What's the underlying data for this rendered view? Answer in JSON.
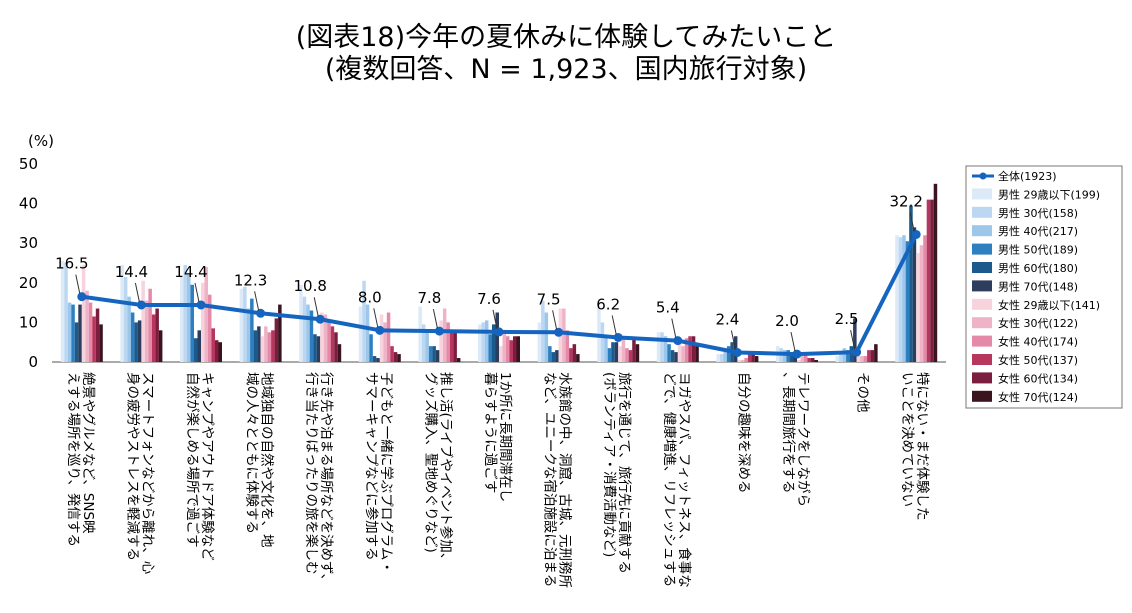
{
  "title_line1": "(図表18)今年の夏休みに体験してみたいこと",
  "title_line2": "(複数回答、N = 1,923、国内旅行対象)",
  "chart_data": {
    "type": "bar",
    "unit_label": "(%)",
    "ylim": [
      0,
      50
    ],
    "yticks": [
      "0",
      "10",
      "20",
      "30",
      "40",
      "50"
    ],
    "categories": [
      "絶景やグルメなど、SNS映えする場所を巡り、発信する",
      "スマートフォンなどから離れ、心身の疲労やストレスを軽減する",
      "キャンプやアウトドア体験など自然が楽しめる場所で過ごす",
      "地域独自の自然や文化を、地域の人々とともに体験する",
      "行き先や泊まる場所などを決めず、行き当たりばったりの旅を楽しむ",
      "子どもと一緒に学ぶプログラム・サマーキャンプなどに参加する",
      "推し活(ライブやイベント参加、グッズ購入、聖地めぐりなど)",
      "1か所に長期間滞在し暮らすように過ごす",
      "水族館の中、洞窟、古城、元刑務所など、ユニークな宿泊施設に泊まる",
      "旅行を通じて、旅行先に貢献する(ボランティア・消費活動など)",
      "ヨガやスパ、フィットネス、食事などで、健康増進、リフレッシュする",
      "自分の趣味を深める",
      "テレワークをしながら、長期間旅行をする",
      "その他",
      "特にない・まだ体験したいことを決めていない"
    ],
    "line_series": {
      "name": "全体(1923)",
      "color": "#1565c0",
      "values": [
        16.5,
        14.4,
        14.4,
        12.3,
        10.8,
        8.0,
        7.8,
        7.6,
        7.5,
        6.2,
        5.4,
        2.4,
        2.0,
        2.5,
        32.2
      ],
      "labels": [
        "16.5",
        "14.4",
        "14.4",
        "12.3",
        "10.8",
        "8.0",
        "7.8",
        "7.6",
        "7.5",
        "6.2",
        "5.4",
        "2.4",
        "2.0",
        "2.5",
        "32.2"
      ]
    },
    "series": [
      {
        "name": "男性 29歳以下(199)",
        "color": "#dce9f7",
        "values": [
          25.5,
          24.5,
          21.5,
          18.5,
          19.5,
          14,
          14,
          9.5,
          10,
          14,
          7.5,
          2,
          4,
          1.5,
          32
        ]
      },
      {
        "name": "男性 30代(158)",
        "color": "#bcd7f1",
        "values": [
          25,
          21.5,
          24.5,
          19,
          16.5,
          20.5,
          9.5,
          10,
          15.5,
          10,
          7.5,
          2,
          3.5,
          2.5,
          31.5
        ]
      },
      {
        "name": "男性 40代(217)",
        "color": "#9cc6ea",
        "values": [
          15,
          16.5,
          22,
          13.5,
          14.5,
          14.5,
          7.5,
          10.5,
          12.5,
          6.5,
          6.5,
          2.5,
          3,
          3.5,
          32
        ]
      },
      {
        "name": "男性 50代(189)",
        "color": "#2e7fbf",
        "values": [
          14.5,
          12.5,
          19.5,
          16,
          13,
          7,
          4,
          7,
          4,
          3.5,
          4.5,
          4,
          3,
          3,
          30.5
        ]
      },
      {
        "name": "男性 60代(180)",
        "color": "#1b5a8a",
        "values": [
          10,
          10,
          6,
          8,
          7,
          1.5,
          4,
          9.5,
          2.5,
          5,
          3,
          5,
          2,
          4,
          39.5
        ]
      },
      {
        "name": "男性 70代(148)",
        "color": "#2d3d5e",
        "values": [
          14.5,
          10.5,
          8,
          9,
          6.5,
          1,
          3,
          12.5,
          3,
          5,
          2.5,
          6.5,
          1.5,
          11,
          34
        ]
      },
      {
        "name": "女性 29歳以下(141)",
        "color": "#f7d3dd",
        "values": [
          24.5,
          20.5,
          20,
          6.5,
          12.5,
          12,
          10.5,
          4,
          13.5,
          4,
          5.5,
          0.5,
          0.5,
          2,
          27.5
        ]
      },
      {
        "name": "女性 30代(122)",
        "color": "#efb3c7",
        "values": [
          18,
          15.5,
          24,
          9,
          12,
          10,
          13.5,
          7.5,
          13.5,
          6.5,
          4,
          0.5,
          1.5,
          1.5,
          29.5
        ]
      },
      {
        "name": "女性 40代(174)",
        "color": "#e48aa8",
        "values": [
          15,
          18.5,
          17,
          7.5,
          10,
          12.5,
          10,
          6.5,
          8,
          3.5,
          6,
          1,
          2,
          1.5,
          32
        ]
      },
      {
        "name": "女性 50代(137)",
        "color": "#b7365e",
        "values": [
          11.5,
          12,
          8.5,
          8,
          9,
          4,
          8,
          5.5,
          3.5,
          3,
          6.5,
          2,
          1,
          3,
          41
        ]
      },
      {
        "name": "女性 60代(134)",
        "color": "#7a1d3f",
        "values": [
          13.5,
          13.5,
          5.5,
          11,
          7.5,
          2.5,
          7.5,
          6.5,
          4.5,
          6,
          6.5,
          2,
          1,
          3,
          41
        ]
      },
      {
        "name": "女性 70代(124)",
        "color": "#3a1520",
        "values": [
          9.5,
          8,
          5,
          14.5,
          4.5,
          2,
          1,
          6.5,
          2,
          4.5,
          4,
          1.5,
          0.5,
          4.5,
          45
        ]
      }
    ]
  }
}
